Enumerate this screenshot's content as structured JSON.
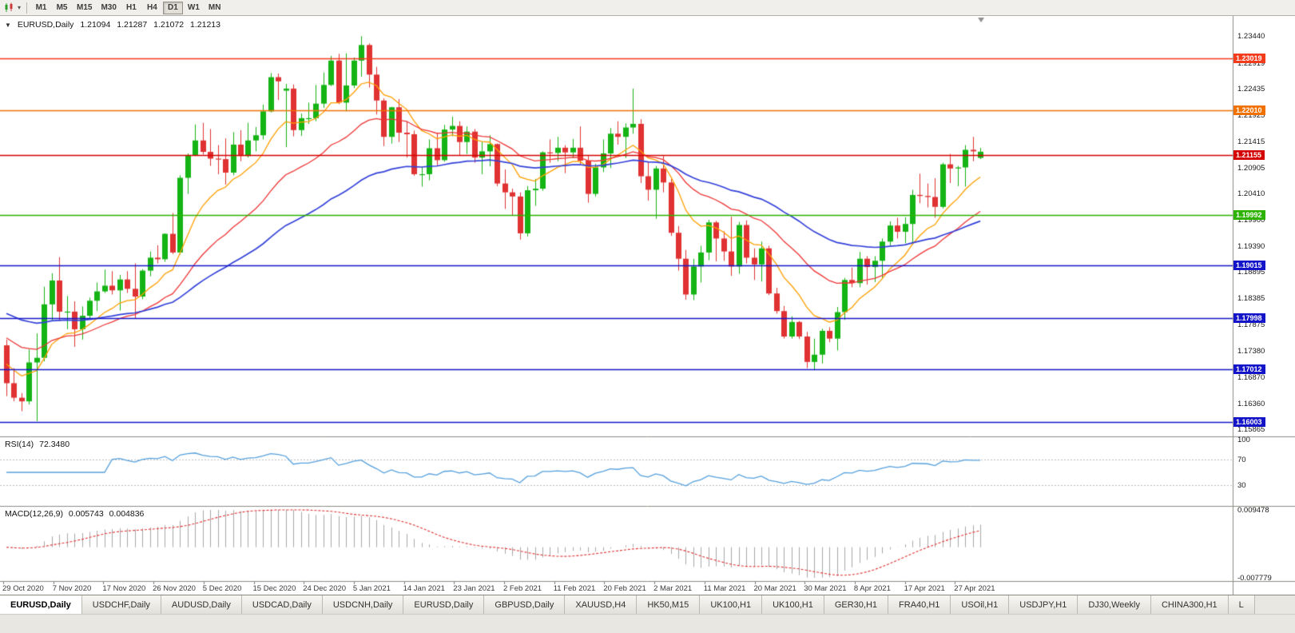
{
  "toolbar": {
    "timeframes": [
      "M1",
      "M5",
      "M15",
      "M30",
      "H1",
      "H4",
      "D1",
      "W1",
      "MN"
    ],
    "active_timeframe": "D1"
  },
  "chart_header": {
    "symbol": "EURUSD,Daily",
    "open": "1.21094",
    "high": "1.21287",
    "low": "1.21072",
    "close": "1.21213"
  },
  "indicator_headers": {
    "rsi_label": "RSI(14)",
    "rsi_value": "72.3480",
    "macd_label": "MACD(12,26,9)",
    "macd_main": "0.005743",
    "macd_signal": "0.004836"
  },
  "tabs": [
    {
      "label": "EURUSD,Daily",
      "active": true
    },
    {
      "label": "USDCHF,Daily"
    },
    {
      "label": "AUDUSD,Daily"
    },
    {
      "label": "USDCAD,Daily"
    },
    {
      "label": "USDCNH,Daily"
    },
    {
      "label": "EURUSD,Daily"
    },
    {
      "label": "GBPUSD,Daily"
    },
    {
      "label": "XAUUSD,H4"
    },
    {
      "label": "HK50,M15"
    },
    {
      "label": "UK100,H1"
    },
    {
      "label": "UK100,H1"
    },
    {
      "label": "GER30,H1"
    },
    {
      "label": "FRA40,H1"
    },
    {
      "label": "USOil,H1"
    },
    {
      "label": "USDJPY,H1"
    },
    {
      "label": "DJ30,Weekly"
    },
    {
      "label": "CHINA300,H1"
    },
    {
      "label": "L"
    }
  ],
  "chart_data": {
    "type": "candlestick",
    "title": "EURUSD,Daily",
    "up_color": "#14b414",
    "down_color": "#e03232",
    "ylim": [
      1.1574,
      1.2383
    ],
    "y_axis_ticks": [
      "1.23440",
      "1.22919",
      "1.22435",
      "1.21925",
      "1.21415",
      "1.20905",
      "1.20410",
      "1.19900",
      "1.19390",
      "1.18895",
      "1.18385",
      "1.17875",
      "1.17380",
      "1.16870",
      "1.16360",
      "1.15865"
    ],
    "x_axis_labels": [
      "29 Oct 2020",
      "7 Nov 2020",
      "17 Nov 2020",
      "26 Nov 2020",
      "5 Dec 2020",
      "15 Dec 2020",
      "24 Dec 2020",
      "5 Jan 2021",
      "14 Jan 2021",
      "23 Jan 2021",
      "2 Feb 2021",
      "11 Feb 2021",
      "20 Feb 2021",
      "2 Mar 2021",
      "11 Mar 2021",
      "20 Mar 2021",
      "30 Mar 2021",
      "8 Apr 2021",
      "17 Apr 2021",
      "27 Apr 2021"
    ],
    "hlines": [
      {
        "price": 1.23019,
        "label": "1.23019",
        "color": "#f43b1c"
      },
      {
        "price": 1.2201,
        "label": "1.22010",
        "color": "#f07000"
      },
      {
        "price": 1.21155,
        "label": "1.21155",
        "color": "#d40000"
      },
      {
        "price": 1.19992,
        "label": "1.19992",
        "color": "#2db200"
      },
      {
        "price": 1.19015,
        "label": "1.19015",
        "color": "#1414c8"
      },
      {
        "price": 1.17998,
        "label": "1.17998",
        "color": "#1414c8"
      },
      {
        "price": 1.17012,
        "label": "1.17012",
        "color": "#1414c8"
      },
      {
        "price": 1.16003,
        "label": "1.16003",
        "color": "#1414c8"
      }
    ],
    "moving_averages": [
      {
        "type": "ema",
        "period": 10,
        "color": "#ff9f00",
        "seed": 1.172
      },
      {
        "type": "ema",
        "period": 24,
        "color": "#ef3535",
        "seed": 1.177
      },
      {
        "type": "ema",
        "period": 50,
        "color": "#3442d9",
        "seed": 1.1815
      }
    ],
    "rsi": {
      "period": 14,
      "current": 72.348,
      "color": "#55a0dd",
      "levels": [
        70,
        30
      ],
      "axis_labels": [
        "100",
        "70",
        "30"
      ]
    },
    "macd": {
      "fast": 12,
      "slow": 26,
      "signal": 9,
      "current_main": 0.005743,
      "current_signal": 0.004836,
      "range": [
        -0.007779,
        0.009478
      ],
      "axis_labels": [
        "0.009478",
        "-0.007779"
      ],
      "histogram_color": "#a8a8a8",
      "signal_color": "#e03030"
    },
    "ohlc": [
      [
        1.1748,
        1.1759,
        1.165,
        1.1675
      ],
      [
        1.1675,
        1.1704,
        1.164,
        1.1647
      ],
      [
        1.1647,
        1.1656,
        1.1621,
        1.164
      ],
      [
        1.164,
        1.174,
        1.1634,
        1.1715
      ],
      [
        1.1715,
        1.1771,
        1.1602,
        1.1724
      ],
      [
        1.1724,
        1.1861,
        1.1717,
        1.1827
      ],
      [
        1.1827,
        1.1887,
        1.1795,
        1.1873
      ],
      [
        1.1873,
        1.1918,
        1.1795,
        1.1813
      ],
      [
        1.1813,
        1.1843,
        1.1779,
        1.1813
      ],
      [
        1.1813,
        1.1833,
        1.1745,
        1.1779
      ],
      [
        1.1779,
        1.1823,
        1.1759,
        1.1805
      ],
      [
        1.1805,
        1.184,
        1.1799,
        1.1834
      ],
      [
        1.1834,
        1.1869,
        1.1814,
        1.1852
      ],
      [
        1.1852,
        1.1894,
        1.1849,
        1.1863
      ],
      [
        1.1863,
        1.1891,
        1.1846,
        1.1854
      ],
      [
        1.1854,
        1.1884,
        1.1815,
        1.1875
      ],
      [
        1.1875,
        1.1891,
        1.1849,
        1.1857
      ],
      [
        1.1857,
        1.1906,
        1.18,
        1.1842
      ],
      [
        1.1842,
        1.1895,
        1.1837,
        1.1892
      ],
      [
        1.1892,
        1.1929,
        1.1881,
        1.1917
      ],
      [
        1.1917,
        1.1941,
        1.1906,
        1.1914
      ],
      [
        1.1914,
        1.1964,
        1.1909,
        1.1963
      ],
      [
        1.1963,
        1.2003,
        1.1924,
        1.1927
      ],
      [
        1.1927,
        1.2076,
        1.1923,
        1.2071
      ],
      [
        1.2071,
        1.2118,
        1.204,
        1.2115
      ],
      [
        1.2115,
        1.2174,
        1.2113,
        1.2143
      ],
      [
        1.2143,
        1.2177,
        1.2116,
        1.2121
      ],
      [
        1.2121,
        1.2165,
        1.2094,
        1.2108
      ],
      [
        1.2108,
        1.2134,
        1.2078,
        1.2107
      ],
      [
        1.2107,
        1.2147,
        1.2058,
        1.2081
      ],
      [
        1.2081,
        1.2159,
        1.2076,
        1.2135
      ],
      [
        1.2135,
        1.2163,
        1.2103,
        1.2113
      ],
      [
        1.2113,
        1.2177,
        1.211,
        1.2143
      ],
      [
        1.2143,
        1.2169,
        1.2122,
        1.2153
      ],
      [
        1.2153,
        1.2212,
        1.2145,
        1.2199
      ],
      [
        1.2199,
        1.2273,
        1.2197,
        1.2265
      ],
      [
        1.2265,
        1.2272,
        1.2221,
        1.2257
      ],
      [
        1.2239,
        1.2252,
        1.213,
        1.2243
      ],
      [
        1.2243,
        1.2251,
        1.2151,
        1.2163
      ],
      [
        1.2163,
        1.2195,
        1.2152,
        1.2186
      ],
      [
        1.2186,
        1.2216,
        1.2175,
        1.2186
      ],
      [
        1.2186,
        1.225,
        1.218,
        1.2214
      ],
      [
        1.2214,
        1.2274,
        1.2206,
        1.225
      ],
      [
        1.225,
        1.2306,
        1.2248,
        1.2297
      ],
      [
        1.2297,
        1.231,
        1.2213,
        1.2216
      ],
      [
        1.2216,
        1.2311,
        1.2199,
        1.2249
      ],
      [
        1.2249,
        1.2303,
        1.2244,
        1.2297
      ],
      [
        1.2297,
        1.2344,
        1.2266,
        1.2327
      ],
      [
        1.2327,
        1.233,
        1.2245,
        1.227
      ],
      [
        1.227,
        1.2285,
        1.2193,
        1.222
      ],
      [
        1.222,
        1.2224,
        1.2132,
        1.215
      ],
      [
        1.215,
        1.2208,
        1.2137,
        1.2207
      ],
      [
        1.2207,
        1.2223,
        1.214,
        1.2158
      ],
      [
        1.2158,
        1.218,
        1.211,
        1.2155
      ],
      [
        1.2155,
        1.2162,
        1.2075,
        1.2078
      ],
      [
        1.2078,
        1.2092,
        1.2054,
        1.2078
      ],
      [
        1.2078,
        1.2145,
        1.2066,
        1.2128
      ],
      [
        1.2128,
        1.2158,
        1.2095,
        1.2105
      ],
      [
        1.2105,
        1.2173,
        1.2102,
        1.2164
      ],
      [
        1.2164,
        1.2189,
        1.2151,
        1.2171
      ],
      [
        1.2171,
        1.218,
        1.2115,
        1.214
      ],
      [
        1.214,
        1.217,
        1.2117,
        1.216
      ],
      [
        1.216,
        1.2165,
        1.21,
        1.211
      ],
      [
        1.211,
        1.2141,
        1.2078,
        1.2122
      ],
      [
        1.2122,
        1.2153,
        1.2093,
        1.2136
      ],
      [
        1.2136,
        1.2137,
        1.2055,
        1.206
      ],
      [
        1.206,
        1.2087,
        1.2011,
        1.2043
      ],
      [
        1.2043,
        1.205,
        1.1999,
        1.2035
      ],
      [
        1.2035,
        1.2043,
        1.1952,
        1.1964
      ],
      [
        1.1964,
        1.2055,
        1.1958,
        1.2047
      ],
      [
        1.2047,
        1.2069,
        1.2017,
        1.205
      ],
      [
        1.205,
        1.2122,
        1.2046,
        1.212
      ],
      [
        1.212,
        1.2145,
        1.21,
        1.2119
      ],
      [
        1.2119,
        1.215,
        1.2103,
        1.2129
      ],
      [
        1.2129,
        1.2134,
        1.208,
        1.212
      ],
      [
        1.212,
        1.2146,
        1.2109,
        1.2129
      ],
      [
        1.2129,
        1.217,
        1.2097,
        1.2104
      ],
      [
        1.2104,
        1.2113,
        1.2023,
        1.204
      ],
      [
        1.204,
        1.2098,
        1.2035,
        1.2091
      ],
      [
        1.2091,
        1.2145,
        1.2082,
        1.2118
      ],
      [
        1.2118,
        1.2167,
        1.209,
        1.2156
      ],
      [
        1.2156,
        1.218,
        1.2135,
        1.215
      ],
      [
        1.215,
        1.2176,
        1.2109,
        1.2168
      ],
      [
        1.2168,
        1.2243,
        1.2156,
        1.2175
      ],
      [
        1.2175,
        1.2184,
        1.2061,
        1.2074
      ],
      [
        1.2074,
        1.2101,
        1.2027,
        1.2048
      ],
      [
        1.2048,
        1.2094,
        1.1992,
        1.2089
      ],
      [
        1.2089,
        1.2113,
        1.2043,
        1.2062
      ],
      [
        1.2062,
        1.2069,
        1.1959,
        1.1965
      ],
      [
        1.1965,
        1.1978,
        1.1892,
        1.1915
      ],
      [
        1.1915,
        1.1932,
        1.1836,
        1.1846
      ],
      [
        1.1846,
        1.1915,
        1.1835,
        1.19
      ],
      [
        1.19,
        1.194,
        1.1869,
        1.1927
      ],
      [
        1.1927,
        1.199,
        1.1912,
        1.1985
      ],
      [
        1.1985,
        1.1988,
        1.191,
        1.1954
      ],
      [
        1.1954,
        1.1968,
        1.1911,
        1.1929
      ],
      [
        1.1929,
        1.1996,
        1.1882,
        1.19
      ],
      [
        1.19,
        1.1986,
        1.1886,
        1.198
      ],
      [
        1.198,
        1.1989,
        1.1906,
        1.1917
      ],
      [
        1.1917,
        1.1935,
        1.1874,
        1.1904
      ],
      [
        1.1904,
        1.1948,
        1.1871,
        1.1935
      ],
      [
        1.1935,
        1.194,
        1.1845,
        1.1848
      ],
      [
        1.1848,
        1.1859,
        1.1809,
        1.1814
      ],
      [
        1.1814,
        1.1824,
        1.1761,
        1.1765
      ],
      [
        1.1765,
        1.1804,
        1.1761,
        1.1793
      ],
      [
        1.1793,
        1.1795,
        1.176,
        1.1765
      ],
      [
        1.1765,
        1.1774,
        1.1704,
        1.1716
      ],
      [
        1.1716,
        1.1761,
        1.17,
        1.173
      ],
      [
        1.173,
        1.178,
        1.1713,
        1.1776
      ],
      [
        1.1776,
        1.1783,
        1.1754,
        1.1761
      ],
      [
        1.1761,
        1.1822,
        1.1738,
        1.1812
      ],
      [
        1.1812,
        1.1878,
        1.1797,
        1.1874
      ],
      [
        1.1874,
        1.1898,
        1.186,
        1.1868
      ],
      [
        1.1868,
        1.1928,
        1.186,
        1.1915
      ],
      [
        1.1915,
        1.192,
        1.1865,
        1.1899
      ],
      [
        1.1899,
        1.192,
        1.187,
        1.1911
      ],
      [
        1.1911,
        1.1954,
        1.1878,
        1.1948
      ],
      [
        1.1948,
        1.1987,
        1.194,
        1.1979
      ],
      [
        1.1979,
        1.1994,
        1.1954,
        1.1967
      ],
      [
        1.1967,
        1.1995,
        1.1945,
        1.1982
      ],
      [
        1.1982,
        1.2048,
        1.1942,
        1.2038
      ],
      [
        1.2038,
        1.2079,
        1.2022,
        1.2036
      ],
      [
        1.2036,
        1.206,
        1.2014,
        1.2034
      ],
      [
        1.2034,
        1.207,
        1.1994,
        1.2015
      ],
      [
        1.2015,
        1.21,
        1.2012,
        1.2097
      ],
      [
        1.2097,
        1.2117,
        1.2061,
        1.2089
      ],
      [
        1.2089,
        1.2094,
        1.2055,
        1.2091
      ],
      [
        1.2091,
        1.2134,
        1.2054,
        1.2125
      ],
      [
        1.2125,
        1.215,
        1.2103,
        1.2122
      ],
      [
        1.21094,
        1.21287,
        1.21072,
        1.21213
      ]
    ]
  }
}
